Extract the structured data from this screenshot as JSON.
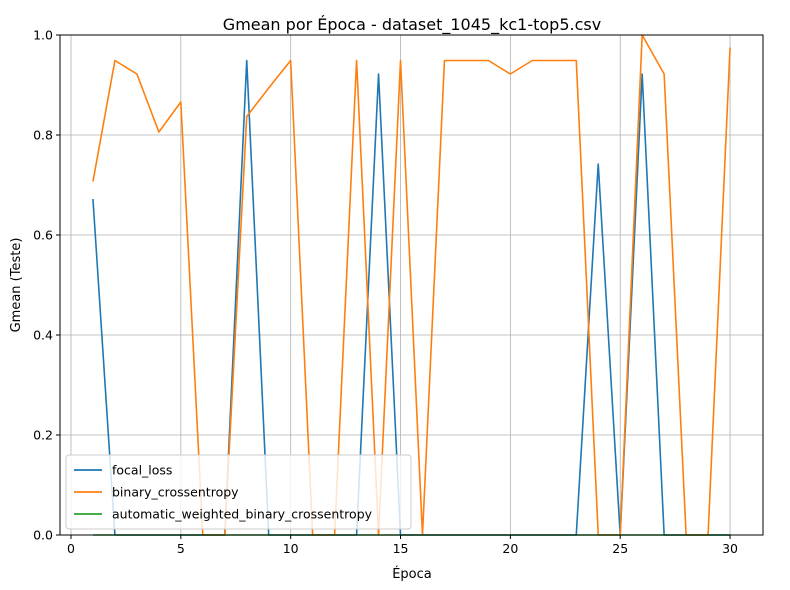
{
  "chart_data": {
    "type": "line",
    "title": "Gmean por Época - dataset_1045_kc1-top5.csv",
    "xlabel": "Época",
    "ylabel": "Gmean (Teste)",
    "xlim": [
      -0.5,
      31.5
    ],
    "ylim": [
      0,
      1
    ],
    "xticks": [
      0,
      5,
      10,
      15,
      20,
      25,
      30
    ],
    "yticks": [
      0.0,
      0.2,
      0.4,
      0.6,
      0.8,
      1.0
    ],
    "grid": true,
    "legend_position": "lower-left",
    "x": [
      1,
      2,
      3,
      4,
      5,
      6,
      7,
      8,
      9,
      10,
      11,
      12,
      13,
      14,
      15,
      16,
      17,
      18,
      19,
      20,
      21,
      22,
      23,
      24,
      25,
      26,
      27,
      28,
      29,
      30
    ],
    "series": [
      {
        "name": "focal_loss",
        "color": "#1f77b4",
        "values": [
          0.672,
          0,
          0,
          0,
          0,
          0,
          0,
          0.949,
          0,
          0,
          0,
          0,
          0,
          0.922,
          0,
          0,
          0,
          0,
          0,
          0,
          0,
          0,
          0,
          0.742,
          0,
          0.922,
          0,
          0,
          0,
          0
        ]
      },
      {
        "name": "binary_crossentropy",
        "color": "#ff7f0e",
        "values": [
          0.707,
          0.949,
          0.922,
          0.806,
          0.866,
          0,
          0,
          0.837,
          0.894,
          0.949,
          0,
          0,
          0.949,
          0,
          0.949,
          0,
          0.949,
          0.949,
          0.949,
          0.922,
          0.949,
          0.949,
          0.949,
          0,
          0,
          1.0,
          0.922,
          0,
          0,
          0.975
        ]
      },
      {
        "name": "automatic_weighted_binary_crossentropy",
        "color": "#2ca02c",
        "values": [
          0,
          0,
          0,
          0,
          0,
          0,
          0,
          0,
          0,
          0,
          0,
          0,
          0,
          0,
          0,
          0,
          0,
          0,
          0,
          0,
          0,
          0,
          0,
          0,
          0,
          0,
          0,
          0,
          0,
          0
        ]
      }
    ]
  }
}
